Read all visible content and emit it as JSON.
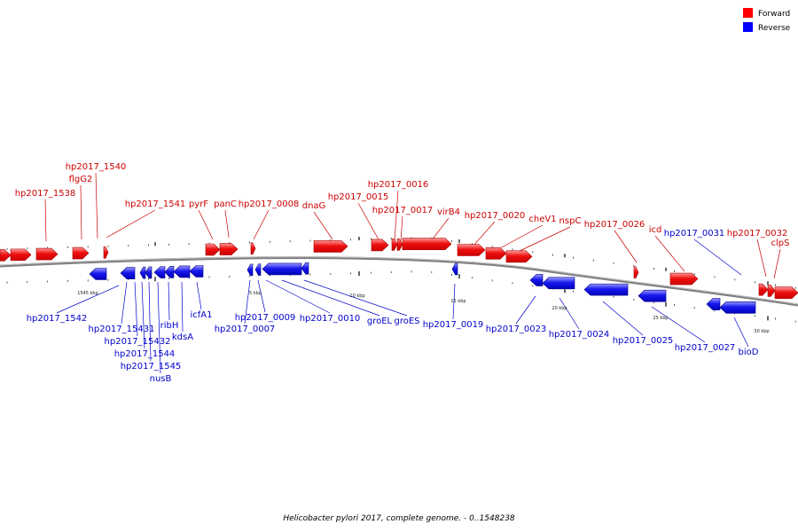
{
  "legend": {
    "forward_label": "Forward",
    "reverse_label": "Reverse",
    "forward_color": "#ff0000",
    "reverse_color": "#0000ff"
  },
  "colors": {
    "forward_fill": "#ee0000",
    "forward_light": "#ff8080",
    "reverse_fill": "#1010ee",
    "reverse_light": "#8080ff",
    "backbone": "#808080",
    "leader_forward": "#cc0000",
    "leader_reverse": "#0000cc"
  },
  "caption": "Helicobacter pylori 2017, complete genome. - 0..1548238",
  "scale_labels": [
    "1545 kbp",
    "5 kbp",
    "10 kbp",
    "15 kbp",
    "20 kbp",
    "25 kbp",
    "30 kbp"
  ],
  "forward_genes": [
    "hp2017_1538",
    "flgG2",
    "hp2017_1540",
    "hp2017_1541",
    "pyrF",
    "panC",
    "hp2017_0008",
    "dnaG",
    "hp2017_0015",
    "hp2017_0016",
    "hp2017_0017",
    "virB4",
    "hp2017_0020",
    "cheV1",
    "nspC",
    "hp2017_0026",
    "icd",
    "hp2017_0032",
    "clpS"
  ],
  "reverse_genes": [
    "hp2017_1542",
    "hp2017_15431",
    "hp2017_15432",
    "hp2017_1544",
    "hp2017_1545",
    "nusB",
    "ribH",
    "kdsA",
    "icfA1",
    "hp2017_0007",
    "hp2017_0009",
    "hp2017_0010",
    "groEL",
    "groES",
    "hp2017_0019",
    "hp2017_0023",
    "hp2017_0024",
    "hp2017_0025",
    "hp2017_0027",
    "hp2017_0031",
    "bioD"
  ]
}
